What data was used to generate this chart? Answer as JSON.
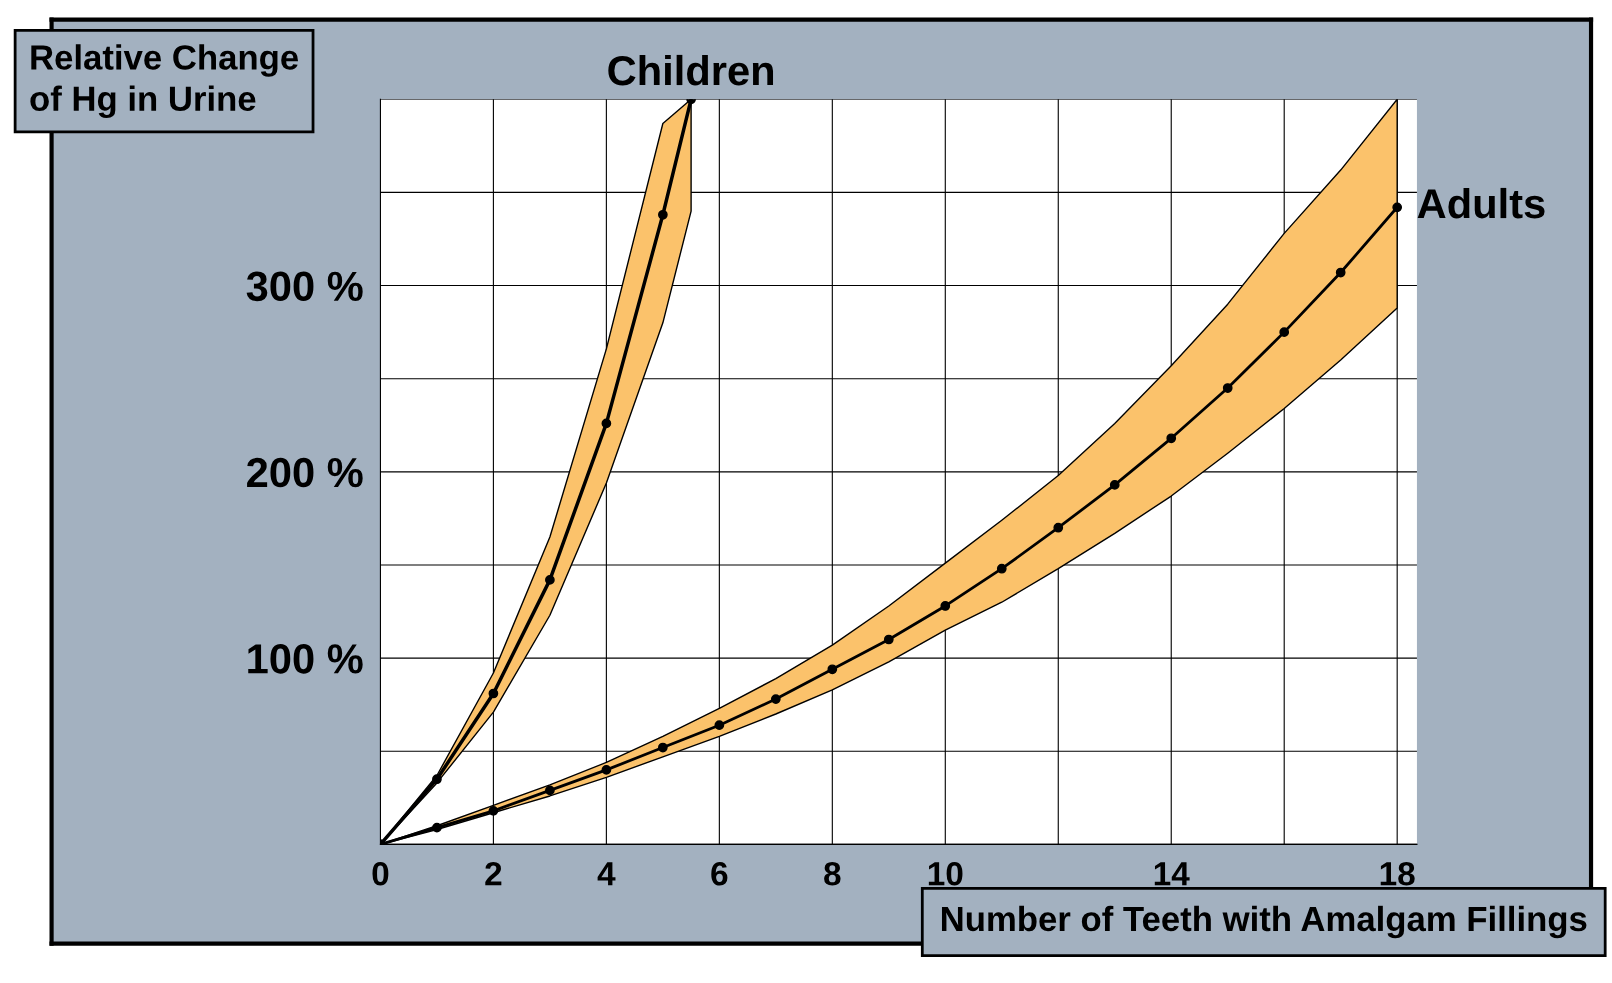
{
  "chart_data": {
    "type": "line",
    "title": "Relative Change\nof Hg in Urine",
    "xlabel": "Number of Teeth with Amalgam Fillings",
    "xlim": [
      0,
      18.35
    ],
    "ylim": [
      0,
      400
    ],
    "xticks": [
      {
        "value": 0,
        "label": "0"
      },
      {
        "value": 2,
        "label": "2"
      },
      {
        "value": 4,
        "label": "4"
      },
      {
        "value": 6,
        "label": "6"
      },
      {
        "value": 8,
        "label": "8"
      },
      {
        "value": 10,
        "label": "10"
      },
      {
        "value": 12,
        "label": null
      },
      {
        "value": 14,
        "label": "14"
      },
      {
        "value": 16,
        "label": null
      },
      {
        "value": 18,
        "label": "18"
      }
    ],
    "yticks": [
      {
        "value": 0,
        "label": null
      },
      {
        "value": 50,
        "label": null
      },
      {
        "value": 100,
        "label": "100 %"
      },
      {
        "value": 150,
        "label": null
      },
      {
        "value": 200,
        "label": "200 %"
      },
      {
        "value": 250,
        "label": null
      },
      {
        "value": 300,
        "label": "300 %"
      },
      {
        "value": 350,
        "label": null
      },
      {
        "value": 400,
        "label": null
      }
    ],
    "grid": true,
    "marker": "circle",
    "line_style": "solid",
    "legend": false,
    "series": [
      {
        "name": "Children",
        "color": "#000000",
        "x": [
          0,
          1,
          2,
          3,
          4,
          5,
          5.5
        ],
        "values": [
          0,
          35,
          81,
          142,
          226,
          338,
          400
        ],
        "lower": [
          0,
          33,
          71,
          123,
          194,
          280,
          340
        ],
        "upper": [
          0,
          37,
          92,
          165,
          266,
          387,
          400
        ]
      },
      {
        "name": "Adults",
        "color": "#000000",
        "x": [
          0,
          1,
          2,
          3,
          4,
          5,
          6,
          7,
          8,
          9,
          10,
          11,
          12,
          13,
          14,
          15,
          16,
          17,
          18
        ],
        "values": [
          0,
          9,
          18,
          29,
          40,
          52,
          64,
          78,
          94,
          110,
          128,
          148,
          170,
          193,
          218,
          245,
          275,
          307,
          342
        ],
        "lower": [
          0,
          8,
          17,
          26,
          36,
          47,
          58,
          70,
          83,
          98,
          115,
          130,
          148,
          167,
          187,
          210,
          234,
          260,
          288
        ],
        "upper": [
          0,
          10,
          21,
          32,
          44,
          58,
          73,
          89,
          107,
          128,
          151,
          174,
          198,
          226,
          257,
          290,
          328,
          362,
          400
        ]
      }
    ]
  }
}
